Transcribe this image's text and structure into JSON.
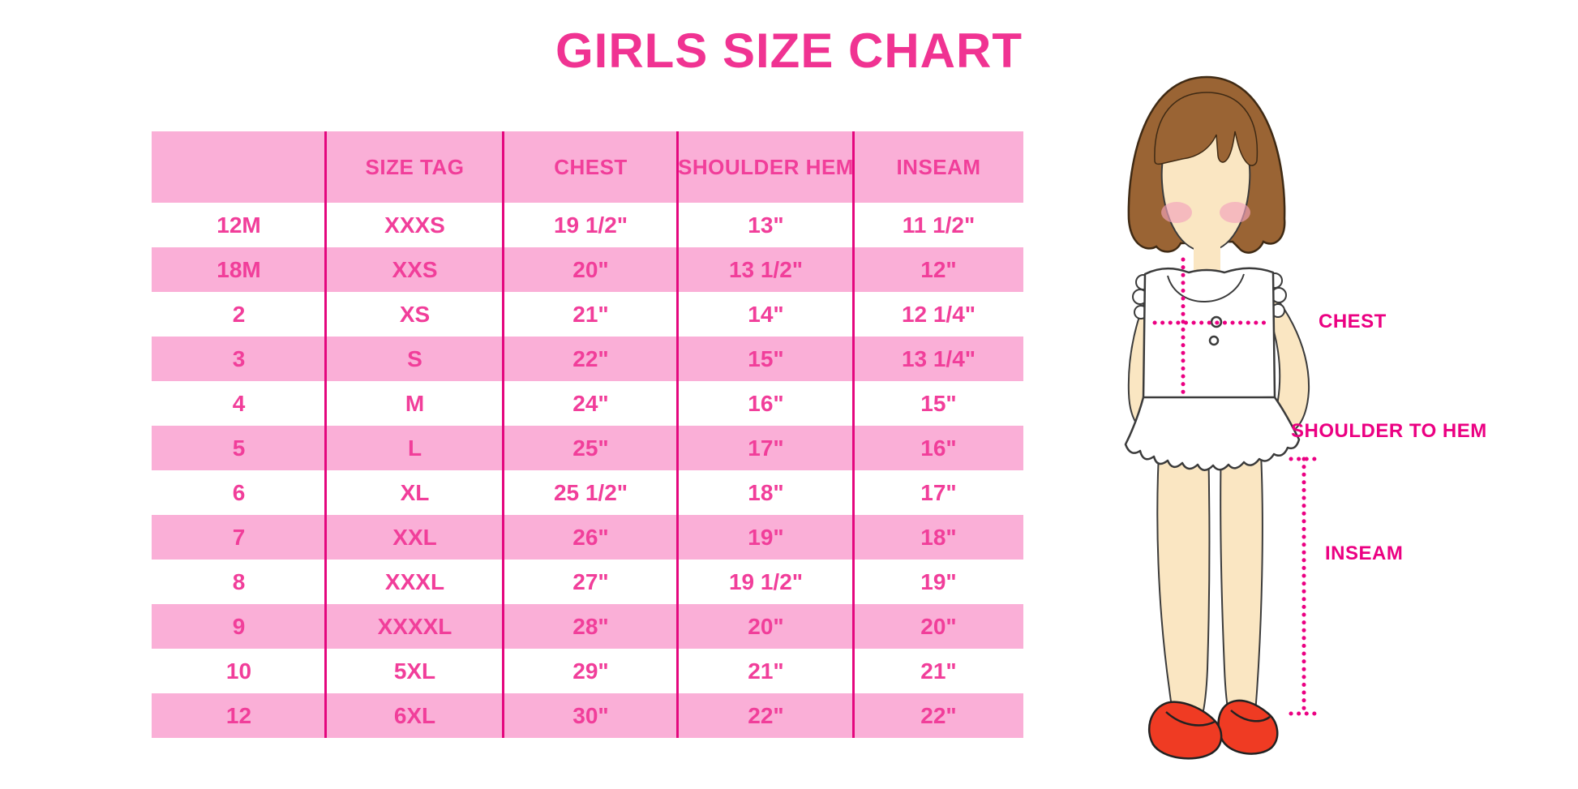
{
  "title": "GIRLS SIZE CHART",
  "chart_data": {
    "type": "table",
    "title": "GIRLS SIZE CHART",
    "columns": [
      "",
      "SIZE TAG",
      "CHEST",
      "SHOULDER HEM",
      "INSEAM"
    ],
    "rows": [
      [
        "12M",
        "XXXS",
        "19 1/2\"",
        "13\"",
        "11 1/2\""
      ],
      [
        "18M",
        "XXS",
        "20\"",
        "13 1/2\"",
        "12\""
      ],
      [
        "2",
        "XS",
        "21\"",
        "14\"",
        "12 1/4\""
      ],
      [
        "3",
        "S",
        "22\"",
        "15\"",
        "13 1/4\""
      ],
      [
        "4",
        "M",
        "24\"",
        "16\"",
        "15\""
      ],
      [
        "5",
        "L",
        "25\"",
        "17\"",
        "16\""
      ],
      [
        "6",
        "XL",
        "25 1/2\"",
        "18\"",
        "17\""
      ],
      [
        "7",
        "XXL",
        "26\"",
        "19\"",
        "18\""
      ],
      [
        "8",
        "XXXL",
        "27\"",
        "19 1/2\"",
        "19\""
      ],
      [
        "9",
        "XXXXL",
        "28\"",
        "20\"",
        "20\""
      ],
      [
        "10",
        "5XL",
        "29\"",
        "21\"",
        "21\""
      ],
      [
        "12",
        "6XL",
        "30\"",
        "22\"",
        "22\""
      ]
    ],
    "layout": {
      "banding": "alternating white and pink rows, pink header",
      "grid": "magenta vertical dividers only"
    }
  },
  "figure": {
    "labels": {
      "chest": "CHEST",
      "shoulder_to_hem": "SHOULDER TO HEM",
      "inseam": "INSEAM"
    }
  },
  "colors": {
    "background": "#FFFFFF",
    "title_pink": "#F03392",
    "table_text_pink": "#F13E9A",
    "band_pink": "#FAAFD7",
    "divider_magenta": "#E4077E",
    "measure_magenta": "#EB0082",
    "hair_brown": "#9A6434",
    "skin": "#FAE6C2",
    "blush": "#F2A3BC",
    "shoe_red": "#EF3B23"
  }
}
